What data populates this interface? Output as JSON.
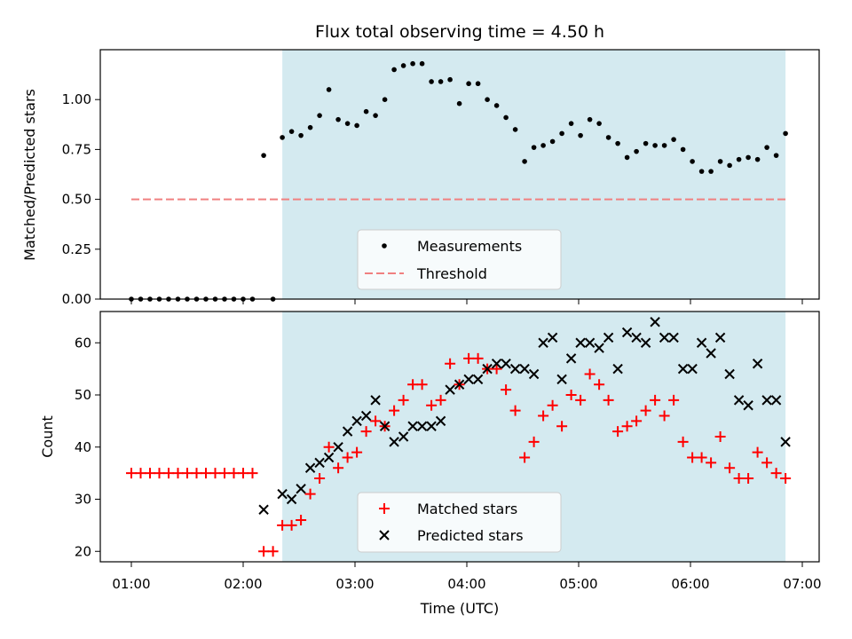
{
  "chart_data": {
    "title": "Flux total observing time = 4.50 h",
    "xlabel": "Time (UTC)",
    "x_ticks": [
      "01:00",
      "02:00",
      "03:00",
      "04:00",
      "05:00",
      "06:00",
      "07:00"
    ],
    "highlight_span": {
      "start": "02:21",
      "end": "06:51",
      "color": "#d4eaf0"
    },
    "panels": [
      {
        "type": "scatter",
        "ylabel": "Matched/Predicted stars",
        "ylim": [
          0,
          1.25
        ],
        "y_ticks": [
          "0.00",
          "0.25",
          "0.50",
          "0.75",
          "1.00"
        ],
        "legend_position": "bottom-center",
        "series": [
          {
            "name": "Measurements",
            "marker": "dot",
            "color": "#000000",
            "points": [
              [
                "01:00",
                0.0
              ],
              [
                "01:05",
                0.0
              ],
              [
                "01:10",
                0.0
              ],
              [
                "01:15",
                0.0
              ],
              [
                "01:20",
                0.0
              ],
              [
                "01:25",
                0.0
              ],
              [
                "01:30",
                0.0
              ],
              [
                "01:35",
                0.0
              ],
              [
                "01:40",
                0.0
              ],
              [
                "01:45",
                0.0
              ],
              [
                "01:50",
                0.0
              ],
              [
                "01:55",
                0.0
              ],
              [
                "02:00",
                0.0
              ],
              [
                "02:05",
                0.0
              ],
              [
                "02:11",
                0.72
              ],
              [
                "02:16",
                0.0
              ],
              [
                "02:21",
                0.81
              ],
              [
                "02:26",
                0.84
              ],
              [
                "02:31",
                0.82
              ],
              [
                "02:36",
                0.86
              ],
              [
                "02:41",
                0.92
              ],
              [
                "02:46",
                1.05
              ],
              [
                "02:51",
                0.9
              ],
              [
                "02:56",
                0.88
              ],
              [
                "03:01",
                0.87
              ],
              [
                "03:06",
                0.94
              ],
              [
                "03:11",
                0.92
              ],
              [
                "03:16",
                1.0
              ],
              [
                "03:21",
                1.15
              ],
              [
                "03:26",
                1.17
              ],
              [
                "03:31",
                1.18
              ],
              [
                "03:36",
                1.18
              ],
              [
                "03:41",
                1.09
              ],
              [
                "03:46",
                1.09
              ],
              [
                "03:51",
                1.1
              ],
              [
                "03:56",
                0.98
              ],
              [
                "04:01",
                1.08
              ],
              [
                "04:06",
                1.08
              ],
              [
                "04:11",
                1.0
              ],
              [
                "04:16",
                0.97
              ],
              [
                "04:21",
                0.91
              ],
              [
                "04:26",
                0.85
              ],
              [
                "04:31",
                0.69
              ],
              [
                "04:36",
                0.76
              ],
              [
                "04:41",
                0.77
              ],
              [
                "04:46",
                0.79
              ],
              [
                "04:51",
                0.83
              ],
              [
                "04:56",
                0.88
              ],
              [
                "05:01",
                0.82
              ],
              [
                "05:06",
                0.9
              ],
              [
                "05:11",
                0.88
              ],
              [
                "05:16",
                0.81
              ],
              [
                "05:21",
                0.78
              ],
              [
                "05:26",
                0.71
              ],
              [
                "05:31",
                0.74
              ],
              [
                "05:36",
                0.78
              ],
              [
                "05:41",
                0.77
              ],
              [
                "05:46",
                0.77
              ],
              [
                "05:51",
                0.8
              ],
              [
                "05:56",
                0.75
              ],
              [
                "06:01",
                0.69
              ],
              [
                "06:06",
                0.64
              ],
              [
                "06:11",
                0.64
              ],
              [
                "06:16",
                0.69
              ],
              [
                "06:21",
                0.67
              ],
              [
                "06:26",
                0.7
              ],
              [
                "06:31",
                0.71
              ],
              [
                "06:36",
                0.7
              ],
              [
                "06:41",
                0.76
              ],
              [
                "06:46",
                0.72
              ],
              [
                "06:51",
                0.83
              ]
            ]
          },
          {
            "name": "Threshold",
            "marker": "dashed-line",
            "color": "#f08080",
            "points": [
              [
                "01:00",
                0.5
              ],
              [
                "06:51",
                0.5
              ]
            ]
          }
        ]
      },
      {
        "type": "scatter",
        "ylabel": "Count",
        "ylim": [
          18,
          66
        ],
        "y_ticks": [
          "20",
          "30",
          "40",
          "50",
          "60"
        ],
        "legend_position": "bottom-center",
        "series": [
          {
            "name": "Matched stars",
            "marker": "plus",
            "color": "#ff0000",
            "points": [
              [
                "01:00",
                35
              ],
              [
                "01:05",
                35
              ],
              [
                "01:10",
                35
              ],
              [
                "01:15",
                35
              ],
              [
                "01:20",
                35
              ],
              [
                "01:25",
                35
              ],
              [
                "01:30",
                35
              ],
              [
                "01:35",
                35
              ],
              [
                "01:40",
                35
              ],
              [
                "01:45",
                35
              ],
              [
                "01:50",
                35
              ],
              [
                "01:55",
                35
              ],
              [
                "02:00",
                35
              ],
              [
                "02:05",
                35
              ],
              [
                "02:11",
                20
              ],
              [
                "02:16",
                20
              ],
              [
                "02:21",
                25
              ],
              [
                "02:26",
                25
              ],
              [
                "02:31",
                26
              ],
              [
                "02:36",
                31
              ],
              [
                "02:41",
                34
              ],
              [
                "02:46",
                40
              ],
              [
                "02:51",
                36
              ],
              [
                "02:56",
                38
              ],
              [
                "03:01",
                39
              ],
              [
                "03:06",
                43
              ],
              [
                "03:11",
                45
              ],
              [
                "03:16",
                44
              ],
              [
                "03:21",
                47
              ],
              [
                "03:26",
                49
              ],
              [
                "03:31",
                52
              ],
              [
                "03:36",
                52
              ],
              [
                "03:41",
                48
              ],
              [
                "03:46",
                49
              ],
              [
                "03:51",
                56
              ],
              [
                "03:56",
                52
              ],
              [
                "04:01",
                57
              ],
              [
                "04:06",
                57
              ],
              [
                "04:11",
                55
              ],
              [
                "04:16",
                55
              ],
              [
                "04:21",
                51
              ],
              [
                "04:26",
                47
              ],
              [
                "04:31",
                38
              ],
              [
                "04:36",
                41
              ],
              [
                "04:41",
                46
              ],
              [
                "04:46",
                48
              ],
              [
                "04:51",
                44
              ],
              [
                "04:56",
                50
              ],
              [
                "05:01",
                49
              ],
              [
                "05:06",
                54
              ],
              [
                "05:11",
                52
              ],
              [
                "05:16",
                49
              ],
              [
                "05:21",
                43
              ],
              [
                "05:26",
                44
              ],
              [
                "05:31",
                45
              ],
              [
                "05:36",
                47
              ],
              [
                "05:41",
                49
              ],
              [
                "05:46",
                46
              ],
              [
                "05:51",
                49
              ],
              [
                "05:56",
                41
              ],
              [
                "06:01",
                38
              ],
              [
                "06:06",
                38
              ],
              [
                "06:11",
                37
              ],
              [
                "06:16",
                42
              ],
              [
                "06:21",
                36
              ],
              [
                "06:26",
                34
              ],
              [
                "06:31",
                34
              ],
              [
                "06:36",
                39
              ],
              [
                "06:41",
                37
              ],
              [
                "06:46",
                35
              ],
              [
                "06:51",
                34
              ]
            ]
          },
          {
            "name": "Predicted stars",
            "marker": "x",
            "color": "#000000",
            "points": [
              [
                "02:11",
                28
              ],
              [
                "02:21",
                31
              ],
              [
                "02:26",
                30
              ],
              [
                "02:31",
                32
              ],
              [
                "02:36",
                36
              ],
              [
                "02:41",
                37
              ],
              [
                "02:46",
                38
              ],
              [
                "02:51",
                40
              ],
              [
                "02:56",
                43
              ],
              [
                "03:01",
                45
              ],
              [
                "03:06",
                46
              ],
              [
                "03:11",
                49
              ],
              [
                "03:16",
                44
              ],
              [
                "03:21",
                41
              ],
              [
                "03:26",
                42
              ],
              [
                "03:31",
                44
              ],
              [
                "03:36",
                44
              ],
              [
                "03:41",
                44
              ],
              [
                "03:46",
                45
              ],
              [
                "03:51",
                51
              ],
              [
                "03:56",
                52
              ],
              [
                "04:01",
                53
              ],
              [
                "04:06",
                53
              ],
              [
                "04:11",
                55
              ],
              [
                "04:16",
                56
              ],
              [
                "04:21",
                56
              ],
              [
                "04:26",
                55
              ],
              [
                "04:31",
                55
              ],
              [
                "04:36",
                54
              ],
              [
                "04:41",
                60
              ],
              [
                "04:46",
                61
              ],
              [
                "04:51",
                53
              ],
              [
                "04:56",
                57
              ],
              [
                "05:01",
                60
              ],
              [
                "05:06",
                60
              ],
              [
                "05:11",
                59
              ],
              [
                "05:16",
                61
              ],
              [
                "05:21",
                55
              ],
              [
                "05:26",
                62
              ],
              [
                "05:31",
                61
              ],
              [
                "05:36",
                60
              ],
              [
                "05:41",
                64
              ],
              [
                "05:46",
                61
              ],
              [
                "05:51",
                61
              ],
              [
                "05:56",
                55
              ],
              [
                "06:01",
                55
              ],
              [
                "06:06",
                60
              ],
              [
                "06:11",
                58
              ],
              [
                "06:16",
                61
              ],
              [
                "06:21",
                54
              ],
              [
                "06:26",
                49
              ],
              [
                "06:31",
                48
              ],
              [
                "06:36",
                56
              ],
              [
                "06:41",
                49
              ],
              [
                "06:46",
                49
              ],
              [
                "06:51",
                41
              ]
            ]
          }
        ]
      }
    ]
  }
}
